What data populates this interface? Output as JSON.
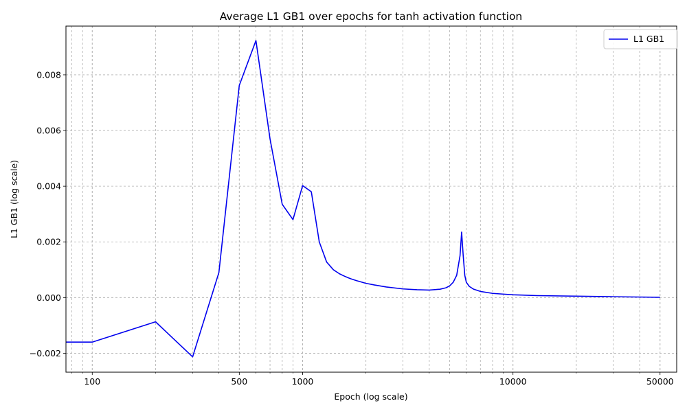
{
  "chart_data": {
    "type": "line",
    "title": "Average L1 GB1 over epochs for tanh activation function",
    "xlabel": "Epoch (log scale)",
    "ylabel": "L1 GB1 (log scale)",
    "x_scale": "log",
    "xlim": [
      75,
      60000
    ],
    "ylim": [
      -0.00268,
      0.00975
    ],
    "grid": true,
    "grid_style": "dashed",
    "legend_position": "top-right",
    "x_ticks": [
      100,
      500,
      1000,
      10000,
      50000
    ],
    "x_tick_labels": [
      "100",
      "500",
      "1000",
      "10000",
      "50000"
    ],
    "y_ticks": [
      -0.002,
      0.0,
      0.002,
      0.004,
      0.006,
      0.008
    ],
    "y_tick_labels": [
      "−0.002",
      "0.000",
      "0.002",
      "0.004",
      "0.006",
      "0.008"
    ],
    "series": [
      {
        "name": "L1 GB1",
        "color": "#0000ee",
        "points": [
          [
            50,
            -0.0016
          ],
          [
            100,
            -0.0016
          ],
          [
            200,
            -0.00087
          ],
          [
            300,
            -0.00213
          ],
          [
            400,
            0.0009
          ],
          [
            500,
            0.00762
          ],
          [
            600,
            0.00923
          ],
          [
            700,
            0.0057
          ],
          [
            800,
            0.00335
          ],
          [
            900,
            0.0028
          ],
          [
            1000,
            0.00402
          ],
          [
            1100,
            0.0038
          ],
          [
            1200,
            0.002
          ],
          [
            1300,
            0.00128
          ],
          [
            1400,
            0.001
          ],
          [
            1500,
            0.00085
          ],
          [
            1600,
            0.00075
          ],
          [
            1700,
            0.00067
          ],
          [
            1800,
            0.00061
          ],
          [
            2000,
            0.00051
          ],
          [
            2200,
            0.00045
          ],
          [
            2500,
            0.00038
          ],
          [
            3000,
            0.00031
          ],
          [
            3500,
            0.00028
          ],
          [
            4000,
            0.00027
          ],
          [
            4500,
            0.0003
          ],
          [
            4800,
            0.00035
          ],
          [
            5000,
            0.00042
          ],
          [
            5200,
            0.00055
          ],
          [
            5400,
            0.0008
          ],
          [
            5600,
            0.0015
          ],
          [
            5700,
            0.00235
          ],
          [
            5800,
            0.0015
          ],
          [
            5900,
            0.0008
          ],
          [
            6000,
            0.00055
          ],
          [
            6200,
            0.0004
          ],
          [
            6500,
            0.0003
          ],
          [
            7000,
            0.00022
          ],
          [
            8000,
            0.00015
          ],
          [
            10000,
            0.0001
          ],
          [
            13000,
            7e-05
          ],
          [
            20000,
            5e-05
          ],
          [
            30000,
            3e-05
          ],
          [
            50000,
            1e-05
          ]
        ]
      }
    ]
  }
}
